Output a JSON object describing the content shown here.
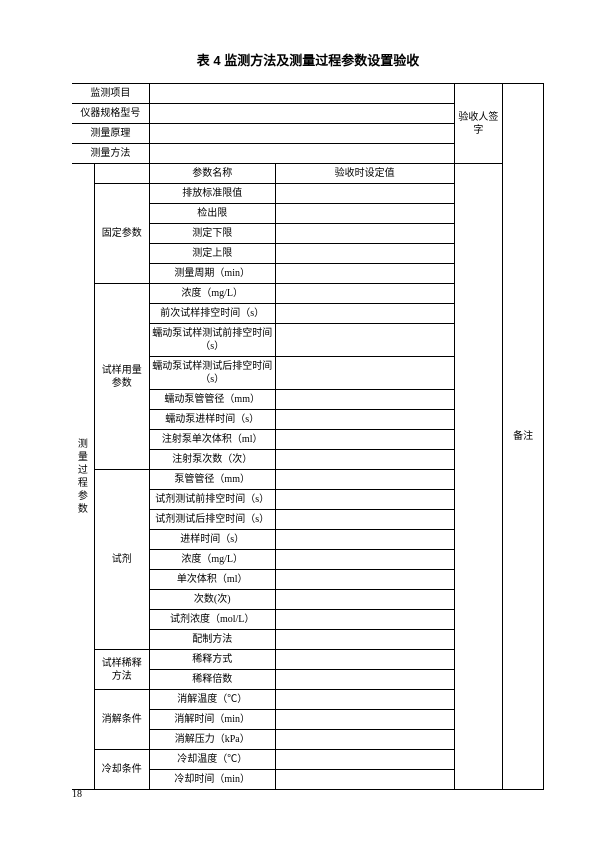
{
  "title": "表 4 监测方法及测量过程参数设置验收",
  "pageNumber": "18",
  "headerRows": {
    "r1": "监测项目",
    "r2": "仪器规格型号",
    "r3": "测量原理",
    "r4": "测量方法",
    "acceptor": "验收人签字",
    "remark": "备注"
  },
  "paramHeader": {
    "name": "参数名称",
    "value": "验收时设定值"
  },
  "group": "测量过程参数",
  "sections": {
    "fixed": {
      "label": "固定参数",
      "rows": [
        "排放标准限值",
        "检出限",
        "测定下限",
        "测定上限",
        "测量周期（min）"
      ]
    },
    "sample": {
      "label": "试样用量参数",
      "rows": [
        "浓度（mg/L）",
        "前次试样排空时间（s）",
        "蠕动泵试样测试前排空时间（s）",
        "蠕动泵试样测试后排空时间（s）",
        "蠕动泵管管径（mm）",
        "蠕动泵进样时间（s）",
        "注射泵单次体积（ml）",
        "注射泵次数（次）"
      ]
    },
    "reagent": {
      "label": "试剂",
      "rows": [
        "泵管管径（mm）",
        "试剂测试前排空时间（s）",
        "试剂测试后排空时间（s）",
        "进样时间（s）",
        "浓度（mg/L）",
        "单次体积（ml）",
        "次数(次)",
        "试剂浓度（mol/L）",
        "配制方法"
      ]
    },
    "dilute": {
      "label": "试样稀释方法",
      "rows": [
        "稀释方式",
        "稀释倍数"
      ]
    },
    "digest": {
      "label": "消解条件",
      "rows": [
        "消解温度（℃）",
        "消解时间（min）",
        "消解压力（kPa）"
      ]
    },
    "cool": {
      "label": "冷却条件",
      "rows": [
        "冷却温度（℃）",
        "冷却时间（min）"
      ]
    }
  }
}
